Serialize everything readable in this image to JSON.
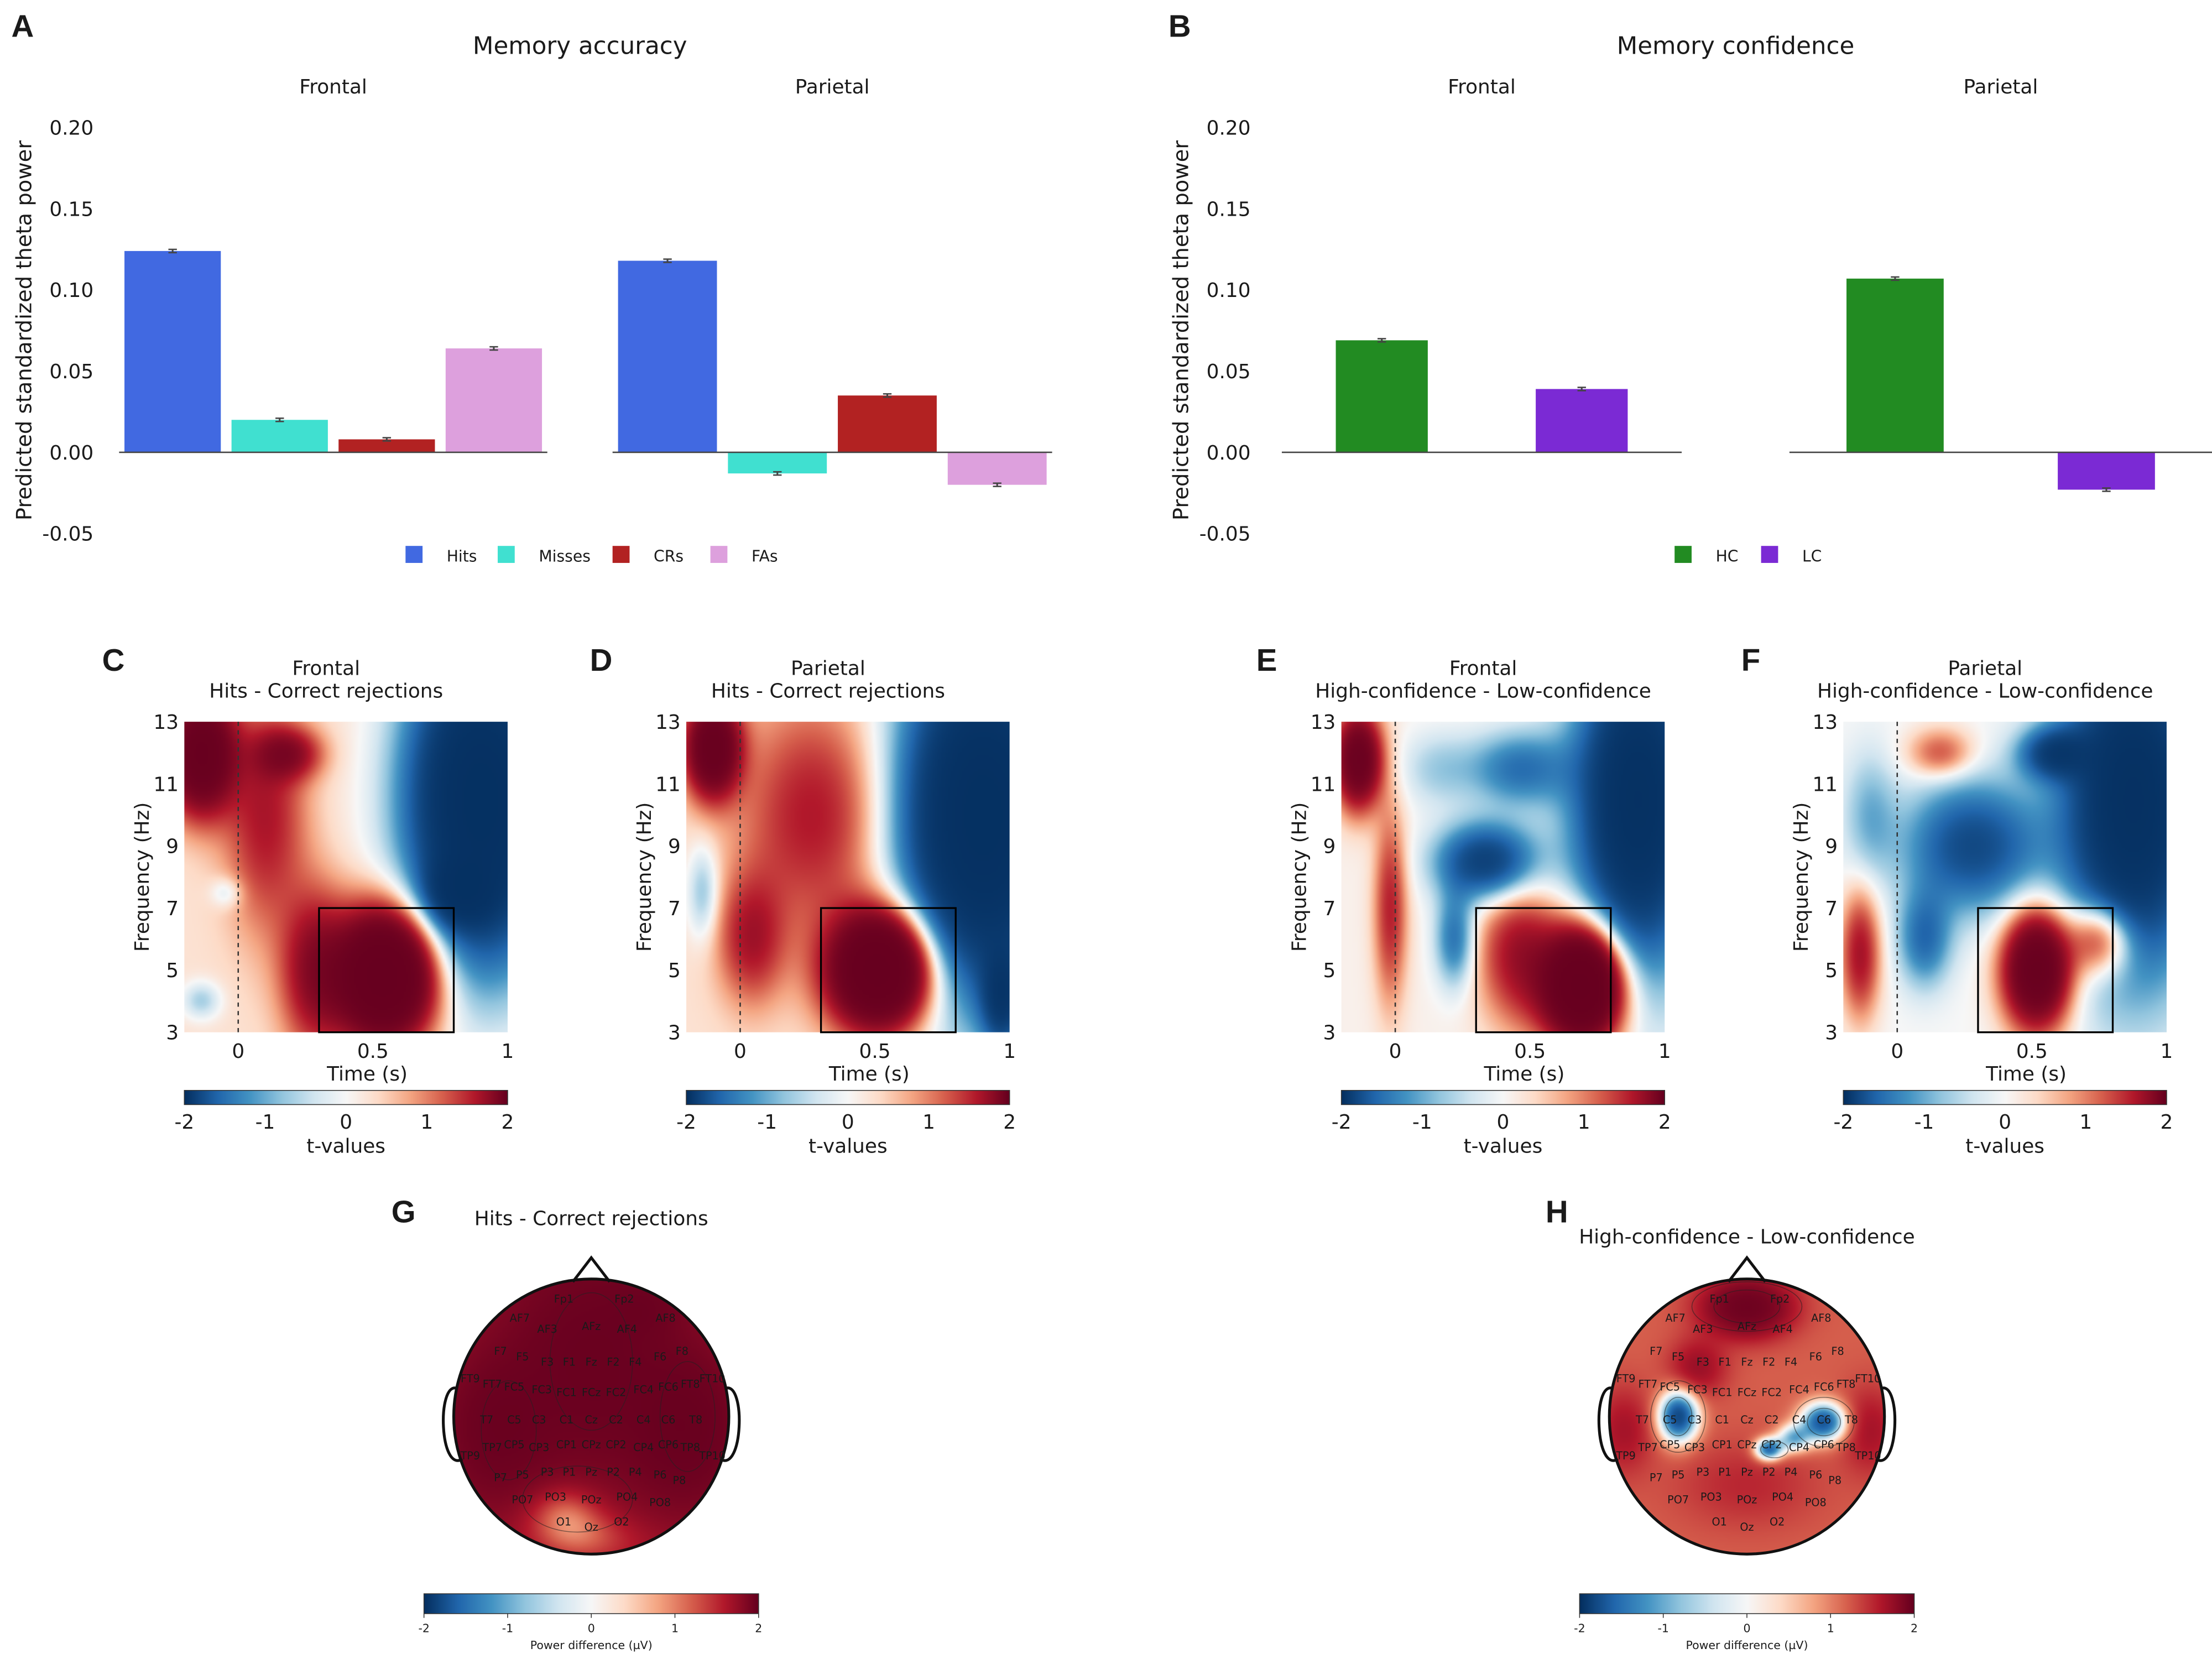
{
  "colors": {
    "Hits": "#4169e1",
    "Misses": "#40e0d0",
    "CRs": "#b22222",
    "FAs": "#dda0dd",
    "HC": "#228b22",
    "LC": "#7b2ad4",
    "diverging": [
      "#053061",
      "#2166ac",
      "#4393c3",
      "#92c5de",
      "#d1e5f0",
      "#f7f7f7",
      "#fddbc7",
      "#f4a582",
      "#d6604d",
      "#b2182b",
      "#67001f"
    ]
  },
  "chart_data": [
    {
      "id": "A",
      "panel_label": "A",
      "type": "bar",
      "title": "Memory accuracy",
      "ylabel": "Predicted standardized theta power",
      "ylim": [
        -0.05,
        0.2
      ],
      "yticks": [
        "0.20",
        "0.15",
        "0.10",
        "0.05",
        "0.00",
        "-0.05"
      ],
      "categories": [
        "Hits",
        "Misses",
        "CRs",
        "FAs"
      ],
      "facets": [
        {
          "name": "Frontal",
          "values": [
            0.124,
            0.02,
            0.008,
            0.064
          ],
          "errors": [
            0.001,
            0.001,
            0.001,
            0.001
          ]
        },
        {
          "name": "Parietal",
          "values": [
            0.118,
            -0.013,
            0.035,
            -0.02
          ],
          "errors": [
            0.001,
            0.001,
            0.001,
            0.001
          ]
        }
      ],
      "legend": [
        "Hits",
        "Misses",
        "CRs",
        "FAs"
      ],
      "legend_position": "bottom"
    },
    {
      "id": "B",
      "panel_label": "B",
      "type": "bar",
      "title": "Memory confidence",
      "ylabel": "Predicted standardized theta power",
      "ylim": [
        -0.05,
        0.2
      ],
      "yticks": [
        "0.20",
        "0.15",
        "0.10",
        "0.05",
        "0.00",
        "-0.05"
      ],
      "categories": [
        "HC",
        "LC"
      ],
      "facets": [
        {
          "name": "Frontal",
          "values": [
            0.069,
            0.039
          ],
          "errors": [
            0.001,
            0.001
          ]
        },
        {
          "name": "Parietal",
          "values": [
            0.107,
            -0.023
          ],
          "errors": [
            0.001,
            0.001
          ]
        }
      ],
      "legend": [
        "HC",
        "LC"
      ],
      "legend_position": "bottom"
    },
    {
      "id": "C",
      "panel_label": "C",
      "type": "heatmap",
      "title": "Frontal",
      "subtitle": "Hits - Correct rejections",
      "xlabel": "Time (s)",
      "ylabel": "Frequency (Hz)",
      "xlim": [
        -0.2,
        1
      ],
      "ylim": [
        3,
        13
      ],
      "xticks": [
        "0",
        "0.5",
        "1"
      ],
      "yticks": [
        "13",
        "11",
        "9",
        "7",
        "5",
        "3"
      ],
      "colorbar_label": "t-values",
      "colorbar_range": [
        -2,
        2
      ],
      "colorbar_ticks": [
        "-2",
        "-1",
        "0",
        "1",
        "2"
      ],
      "roi": {
        "time": [
          0.3,
          0.8
        ],
        "freq": [
          3,
          7
        ]
      }
    },
    {
      "id": "D",
      "panel_label": "D",
      "type": "heatmap",
      "title": "Parietal",
      "subtitle": "Hits - Correct rejections",
      "xlabel": "Time (s)",
      "ylabel": "Frequency (Hz)",
      "xlim": [
        -0.2,
        1
      ],
      "ylim": [
        3,
        13
      ],
      "xticks": [
        "0",
        "0.5",
        "1"
      ],
      "yticks": [
        "13",
        "11",
        "9",
        "7",
        "5",
        "3"
      ],
      "colorbar_label": "t-values",
      "colorbar_range": [
        -2,
        2
      ],
      "colorbar_ticks": [
        "-2",
        "-1",
        "0",
        "1",
        "2"
      ],
      "roi": {
        "time": [
          0.3,
          0.8
        ],
        "freq": [
          3,
          7
        ]
      }
    },
    {
      "id": "E",
      "panel_label": "E",
      "type": "heatmap",
      "title": "Frontal",
      "subtitle": "High-confidence - Low-confidence",
      "xlabel": "Time (s)",
      "ylabel": "Frequency (Hz)",
      "xlim": [
        -0.2,
        1
      ],
      "ylim": [
        3,
        13
      ],
      "xticks": [
        "0",
        "0.5",
        "1"
      ],
      "yticks": [
        "13",
        "11",
        "9",
        "7",
        "5",
        "3"
      ],
      "colorbar_label": "t-values",
      "colorbar_range": [
        -2,
        2
      ],
      "colorbar_ticks": [
        "-2",
        "-1",
        "0",
        "1",
        "2"
      ],
      "roi": {
        "time": [
          0.3,
          0.8
        ],
        "freq": [
          3,
          7
        ]
      }
    },
    {
      "id": "F",
      "panel_label": "F",
      "type": "heatmap",
      "title": "Parietal",
      "subtitle": "High-confidence - Low-confidence",
      "xlabel": "Time (s)",
      "ylabel": "Frequency (Hz)",
      "xlim": [
        -0.2,
        1
      ],
      "ylim": [
        3,
        13
      ],
      "xticks": [
        "0",
        "0.5",
        "1"
      ],
      "yticks": [
        "13",
        "11",
        "9",
        "7",
        "5",
        "3"
      ],
      "colorbar_label": "t-values",
      "colorbar_range": [
        -2,
        2
      ],
      "colorbar_ticks": [
        "-2",
        "-1",
        "0",
        "1",
        "2"
      ],
      "roi": {
        "time": [
          0.3,
          0.8
        ],
        "freq": [
          3,
          7
        ]
      }
    },
    {
      "id": "G",
      "panel_label": "G",
      "type": "heatmap",
      "title": "Hits - Correct rejections",
      "colorbar_label": "Power difference (µV)",
      "colorbar_range": [
        -2,
        2
      ],
      "colorbar_ticks": [
        "-2",
        "-1",
        "0",
        "1",
        "2"
      ],
      "electrodes": [
        "Fp1",
        "Fp2",
        "AF7",
        "AF3",
        "AFz",
        "AF4",
        "AF8",
        "F7",
        "F5",
        "F3",
        "F1",
        "Fz",
        "F2",
        "F4",
        "F6",
        "F8",
        "FT9",
        "FT7",
        "FC5",
        "FC3",
        "FC1",
        "FCz",
        "FC2",
        "FC4",
        "FC6",
        "FT8",
        "FT10",
        "T7",
        "C5",
        "C3",
        "C1",
        "Cz",
        "C2",
        "C4",
        "C6",
        "T8",
        "TP9",
        "TP7",
        "CP5",
        "CP3",
        "CP1",
        "CPz",
        "CP2",
        "CP4",
        "CP6",
        "TP8",
        "TP10",
        "P7",
        "P5",
        "P3",
        "P1",
        "Pz",
        "P2",
        "P4",
        "P6",
        "P8",
        "PO7",
        "PO3",
        "POz",
        "PO4",
        "PO8",
        "O1",
        "Oz",
        "O2"
      ]
    },
    {
      "id": "H",
      "panel_label": "H",
      "type": "heatmap",
      "title": "High-confidence - Low-confidence",
      "colorbar_label": "Power difference (µV)",
      "colorbar_range": [
        -2,
        2
      ],
      "colorbar_ticks": [
        "-2",
        "-1",
        "0",
        "1",
        "2"
      ],
      "electrodes": [
        "Fp1",
        "Fp2",
        "AF7",
        "AF3",
        "AFz",
        "AF4",
        "AF8",
        "F7",
        "F5",
        "F3",
        "F1",
        "Fz",
        "F2",
        "F4",
        "F6",
        "F8",
        "FT9",
        "FT7",
        "FC5",
        "FC3",
        "FC1",
        "FCz",
        "FC2",
        "FC4",
        "FC6",
        "FT8",
        "FT10",
        "T7",
        "C5",
        "C3",
        "C1",
        "Cz",
        "C2",
        "C4",
        "C6",
        "T8",
        "TP9",
        "TP7",
        "CP5",
        "CP3",
        "CP1",
        "CPz",
        "CP2",
        "CP4",
        "CP6",
        "TP8",
        "TP10",
        "P7",
        "P5",
        "P3",
        "P1",
        "Pz",
        "P2",
        "P4",
        "P6",
        "P8",
        "PO7",
        "PO3",
        "POz",
        "PO4",
        "PO8",
        "O1",
        "Oz",
        "O2"
      ]
    }
  ]
}
